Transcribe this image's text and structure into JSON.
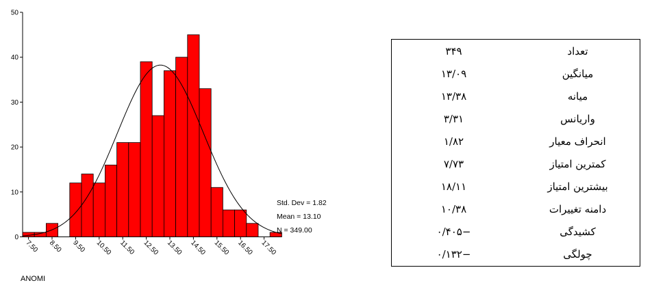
{
  "chart_data": {
    "type": "bar",
    "variable_label": "ANOMI",
    "y_ticks": [
      "0",
      "10",
      "20",
      "30",
      "40",
      "50"
    ],
    "ylim": [
      0,
      50
    ],
    "x_ticks": [
      "7.50",
      "8.50",
      "9.50",
      "10.50",
      "11.50",
      "12.50",
      "13.50",
      "14.50",
      "15.50",
      "16.50",
      "17.50"
    ],
    "bin_width": 0.5,
    "bins": [
      {
        "start": 7.25,
        "value": 1
      },
      {
        "start": 7.75,
        "value": 1
      },
      {
        "start": 8.25,
        "value": 3
      },
      {
        "start": 8.75,
        "value": 0
      },
      {
        "start": 9.25,
        "value": 12
      },
      {
        "start": 9.75,
        "value": 14
      },
      {
        "start": 10.25,
        "value": 12
      },
      {
        "start": 10.75,
        "value": 16
      },
      {
        "start": 11.25,
        "value": 21
      },
      {
        "start": 11.75,
        "value": 21
      },
      {
        "start": 12.25,
        "value": 39
      },
      {
        "start": 12.75,
        "value": 27
      },
      {
        "start": 13.25,
        "value": 37
      },
      {
        "start": 13.75,
        "value": 40
      },
      {
        "start": 14.25,
        "value": 45
      },
      {
        "start": 14.75,
        "value": 33
      },
      {
        "start": 15.25,
        "value": 11
      },
      {
        "start": 15.75,
        "value": 6
      },
      {
        "start": 16.25,
        "value": 6
      },
      {
        "start": 16.75,
        "value": 3
      },
      {
        "start": 17.25,
        "value": 0
      },
      {
        "start": 17.75,
        "value": 1
      }
    ],
    "normal_curve": {
      "mean": 13.1,
      "std": 1.82,
      "n": 349
    },
    "stats_text": [
      "Std. Dev = 1.82",
      "Mean = 13.10",
      "N = 349.00"
    ],
    "bar_color": "#ff0000",
    "curve_color": "#000000"
  },
  "table": {
    "rows": [
      {
        "label": "تعداد",
        "value": "۳۴۹"
      },
      {
        "label": "میانگین",
        "value": "۱۳/۰۹"
      },
      {
        "label": "میانه",
        "value": "۱۳/۳۸"
      },
      {
        "label": "واریانس",
        "value": "۳/۳۱"
      },
      {
        "label": "انحراف معیار",
        "value": "۱/۸۲"
      },
      {
        "label": "کمترین امتیاز",
        "value": "۷/۷۳"
      },
      {
        "label": "بیشترین امتیاز",
        "value": "۱۸/۱۱"
      },
      {
        "label": "دامنه تغییرات",
        "value": "۱۰/۳۸"
      },
      {
        "label": "کشیدگی",
        "value": "−۰/۴۰۵"
      },
      {
        "label": "چولگی",
        "value": "−۰/۱۳۲"
      }
    ]
  }
}
